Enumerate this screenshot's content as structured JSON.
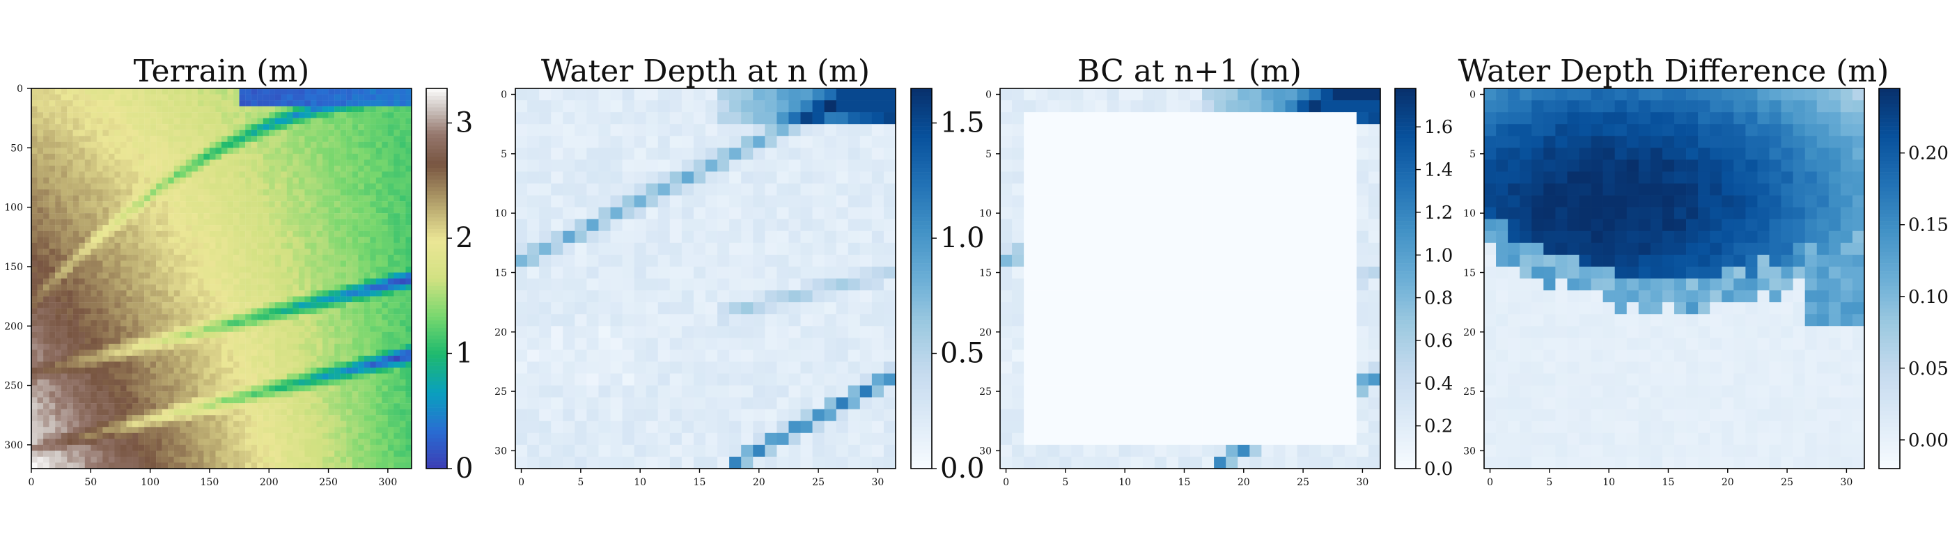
{
  "chart_data": [
    {
      "type": "heatmap",
      "title": "Terrain (m)",
      "field": "terrain",
      "grid_size": 320,
      "colormap": "gist_earth",
      "x_ticks": [
        "0",
        "50",
        "100",
        "150",
        "200",
        "250",
        "300"
      ],
      "y_ticks": [
        "0",
        "50",
        "100",
        "150",
        "200",
        "250",
        "300"
      ],
      "xlim": [
        0,
        320
      ],
      "ylim": [
        320,
        0
      ],
      "colorbar": {
        "min": 0,
        "max": 3.3,
        "ticks": [
          "0",
          "1",
          "2",
          "3"
        ],
        "tick_values": [
          0,
          1,
          2,
          3
        ]
      }
    },
    {
      "type": "heatmap",
      "title": "Water Depth at n (m)",
      "field": "depth_n",
      "grid_size": 32,
      "colormap": "Blues",
      "x_ticks": [
        "0",
        "5",
        "10",
        "15",
        "20",
        "25",
        "30"
      ],
      "y_ticks": [
        "0",
        "5",
        "10",
        "15",
        "20",
        "25",
        "30"
      ],
      "xlim": [
        0,
        32
      ],
      "ylim": [
        32,
        0
      ],
      "colorbar": {
        "min": 0,
        "max": 1.65,
        "ticks": [
          "0.0",
          "0.5",
          "1.0",
          "1.5"
        ],
        "tick_values": [
          0,
          0.5,
          1.0,
          1.5
        ]
      }
    },
    {
      "type": "heatmap",
      "title": "BC at n+1 (m)",
      "field": "bc",
      "grid_size": 32,
      "colormap": "Blues",
      "x_ticks": [
        "0",
        "5",
        "10",
        "15",
        "20",
        "25",
        "30"
      ],
      "y_ticks": [
        "0",
        "5",
        "10",
        "15",
        "20",
        "25",
        "30"
      ],
      "xlim": [
        0,
        32
      ],
      "ylim": [
        32,
        0
      ],
      "colorbar": {
        "min": 0,
        "max": 1.78,
        "ticks": [
          "0.0",
          "0.2",
          "0.4",
          "0.6",
          "0.8",
          "1.0",
          "1.2",
          "1.4",
          "1.6"
        ],
        "tick_values": [
          0,
          0.2,
          0.4,
          0.6,
          0.8,
          1.0,
          1.2,
          1.4,
          1.6
        ]
      }
    },
    {
      "type": "heatmap",
      "title": "Water Depth Difference (m)",
      "field": "diff",
      "grid_size": 32,
      "colormap": "Blues",
      "x_ticks": [
        "0",
        "5",
        "10",
        "15",
        "20",
        "25",
        "30"
      ],
      "y_ticks": [
        "0",
        "5",
        "10",
        "15",
        "20",
        "25",
        "30"
      ],
      "xlim": [
        0,
        32
      ],
      "ylim": [
        32,
        0
      ],
      "colorbar": {
        "min": -0.02,
        "max": 0.245,
        "ticks": [
          "0.00",
          "0.05",
          "0.10",
          "0.15",
          "0.20"
        ],
        "tick_values": [
          0,
          0.05,
          0.1,
          0.15,
          0.2
        ]
      }
    }
  ]
}
